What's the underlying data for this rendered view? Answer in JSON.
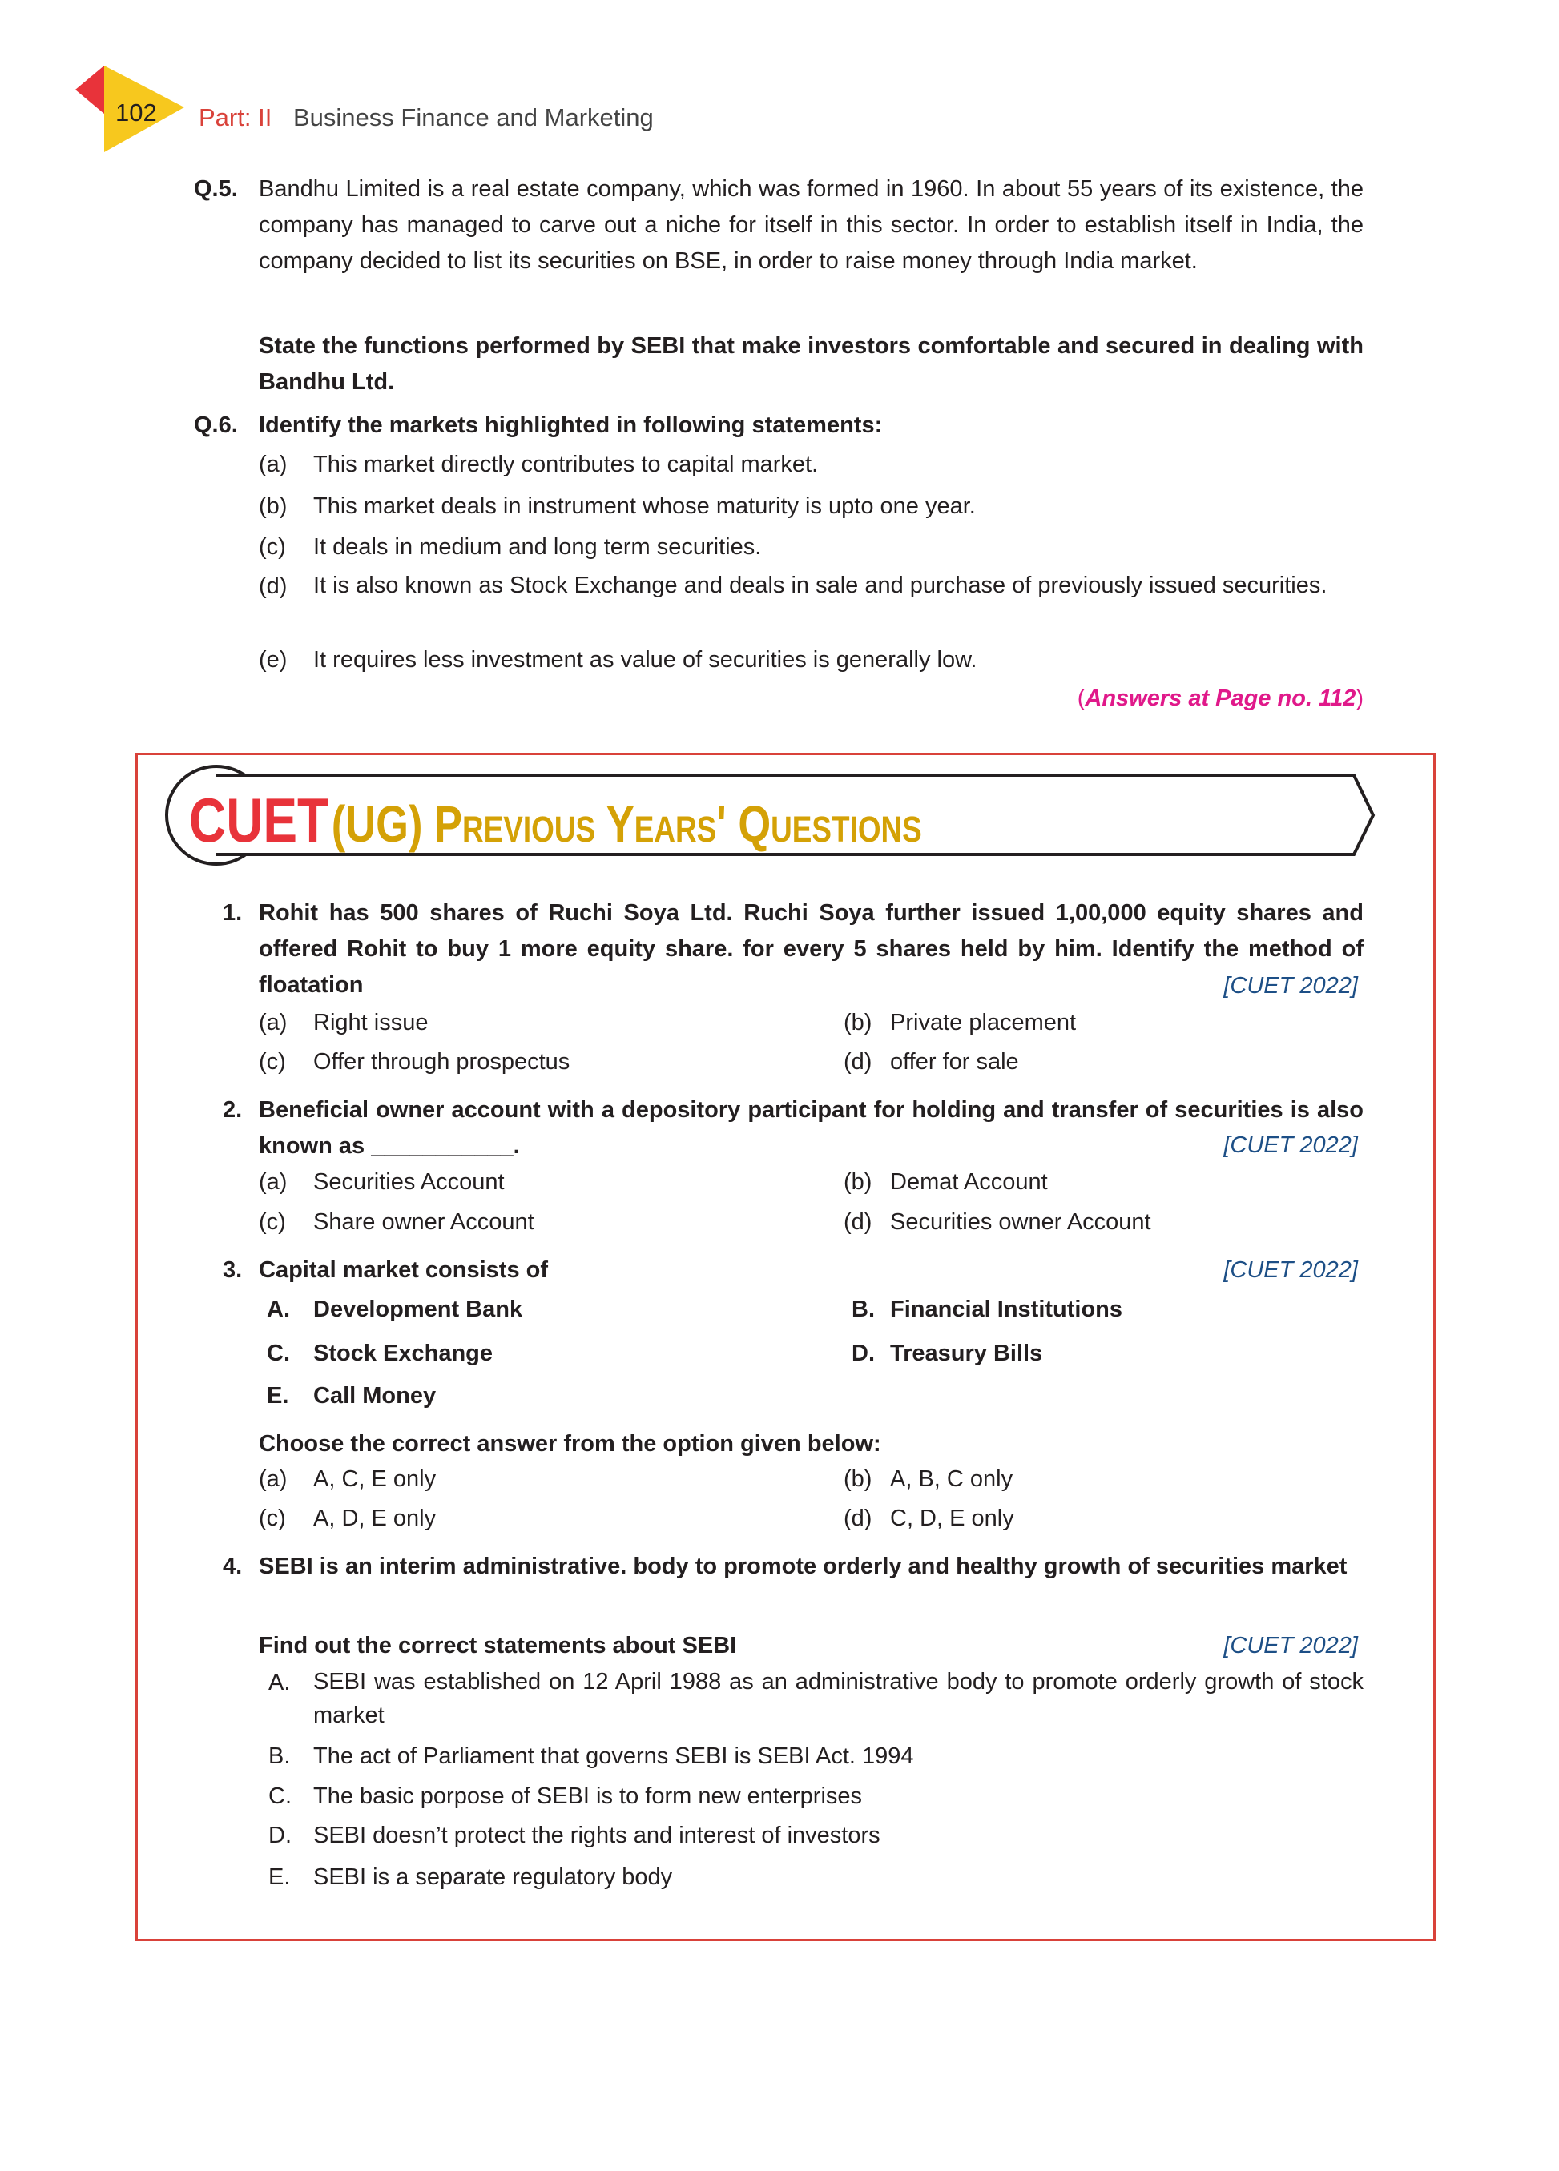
{
  "header": {
    "page_number": "102",
    "part": "Part: II",
    "title": "Business Finance and Marketing"
  },
  "q5": {
    "label": "Q.5.",
    "text": "Bandhu Limited is a real estate company, which was formed in 1960. In about 55 years of its existence, the company has managed to carve out a niche for itself in this sector. In order to establish itself in India, the company decided to list its securities on BSE, in order to raise money through India market.",
    "question": "State the functions performed by SEBI that make investors comfortable and secured in dealing with Bandhu Ltd."
  },
  "q6": {
    "label": "Q.6.",
    "question": "Identify the markets highlighted in following statements:",
    "items": [
      {
        "key": "(a)",
        "text": "This market directly contributes to capital market."
      },
      {
        "key": "(b)",
        "text": "This market deals in instrument whose maturity is upto one year."
      },
      {
        "key": "(c)",
        "text": "It deals in medium and long term securities."
      },
      {
        "key": "(d)",
        "text": "It is also known as Stock Exchange and deals in sale and purchase of previously issued securities."
      },
      {
        "key": "(e)",
        "text": "It requires less investment as value of securities is generally low."
      }
    ],
    "answers_open": "(",
    "answers": "Answers at Page no. 112",
    "answers_close": ")"
  },
  "cuet": {
    "title_main": "CUET",
    "title_rest": "(UG) Previous Years' Questions",
    "q1": {
      "num": "1.",
      "text": "Rohit has 500 shares of Ruchi Soya Ltd. Ruchi Soya further issued 1,00,000 equity shares and offered Rohit to buy 1 more equity share. for every 5 shares held by him. Identify the method of floatation",
      "tag": "[CUET 2022]",
      "options": [
        {
          "key": "(a)",
          "text": "Right issue"
        },
        {
          "key": "(b)",
          "text": "Private placement"
        },
        {
          "key": "(c)",
          "text": "Offer through prospectus"
        },
        {
          "key": "(d)",
          "text": "offer for sale"
        }
      ]
    },
    "q2": {
      "num": "2.",
      "text": "Beneficial owner account with a depository participant for holding and transfer of securities is also known as ___________.",
      "tag": "[CUET 2022]",
      "options": [
        {
          "key": "(a)",
          "text": "Securities Account"
        },
        {
          "key": "(b)",
          "text": "Demat Account"
        },
        {
          "key": "(c)",
          "text": "Share owner Account"
        },
        {
          "key": "(d)",
          "text": "Securities owner Account"
        }
      ]
    },
    "q3": {
      "num": "3.",
      "text": "Capital market consists of",
      "tag": "[CUET 2022]",
      "items": [
        {
          "key": "A.",
          "text": "Development Bank"
        },
        {
          "key": "B.",
          "text": "Financial Institutions"
        },
        {
          "key": "C.",
          "text": "Stock Exchange"
        },
        {
          "key": "D.",
          "text": "Treasury Bills"
        },
        {
          "key": "E.",
          "text": "Call Money"
        }
      ],
      "prompt": "Choose the correct answer from the option given below:",
      "options": [
        {
          "key": "(a)",
          "text": "A, C, E only"
        },
        {
          "key": "(b)",
          "text": "A, B, C only"
        },
        {
          "key": "(c)",
          "text": "A, D, E only"
        },
        {
          "key": "(d)",
          "text": "C, D, E only"
        }
      ]
    },
    "q4": {
      "num": "4.",
      "text": "SEBI is an interim administrative. body to promote orderly and healthy growth of securities market",
      "prompt": "Find out the correct statements about SEBI",
      "tag": "[CUET 2022]",
      "items": [
        {
          "key": "A.",
          "text": "SEBI was established on 12 April 1988 as an administrative body to promote orderly growth of stock market"
        },
        {
          "key": "B.",
          "text": "The act of Parliament that governs SEBI is SEBI Act. 1994"
        },
        {
          "key": "C.",
          "text": "The basic porpose of SEBI is to form new enterprises"
        },
        {
          "key": "D.",
          "text": "SEBI doesn’t protect the rights and interest of investors"
        },
        {
          "key": "E.",
          "text": "SEBI is a separate regulatory body"
        }
      ]
    }
  },
  "colors": {
    "red": "#e8333a",
    "gold": "#d4a106",
    "blue": "#1d4f86",
    "magenta": "#e0198a",
    "border": "#d9423a"
  }
}
